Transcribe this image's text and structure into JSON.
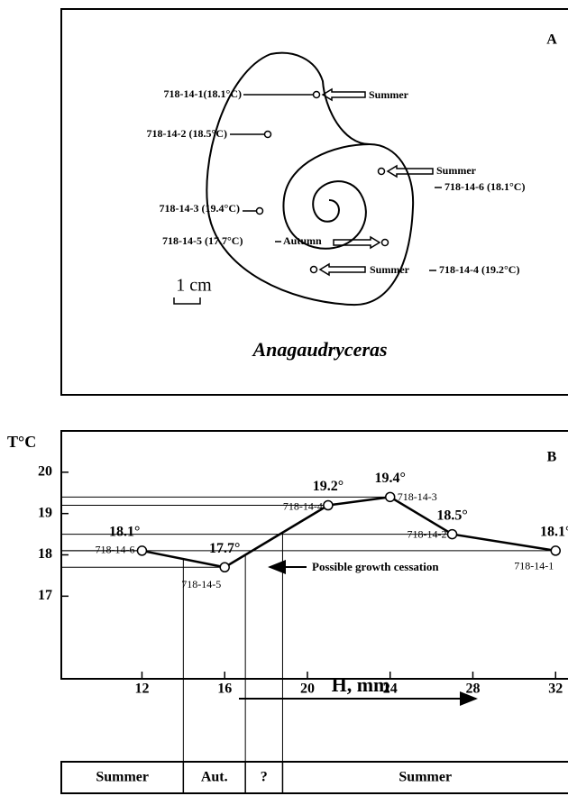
{
  "panel_a": {
    "label": "A",
    "taxon": "Anagaudryceras",
    "scale": "1 cm",
    "notes": [
      "718-14-1(18.1°C)",
      "Summer",
      "718-14-2 (18.5°C)",
      "Summer",
      "718-14-6 (18.1°C)",
      "718-14-3 (19.4°C)",
      "718-14-5 (17.7°C)",
      "Autumn",
      "Summer",
      "718-14-4 (19.2°C)"
    ]
  },
  "chart_data": {
    "type": "line",
    "panel_label": "B",
    "y_label": "T°C",
    "x_label": "H, mm",
    "annotation": "Possible growth cessation",
    "x": [
      12,
      16,
      21,
      24,
      27,
      32
    ],
    "series": [
      {
        "values": [
          18.1,
          17.7,
          19.2,
          19.4,
          18.5,
          18.1
        ],
        "value_labels": [
          "18.1°",
          "17.7°",
          "19.2°",
          "19.4°",
          "18.5°",
          "18.1°"
        ],
        "point_labels": [
          "718-14-6",
          "718-14-5",
          "718-14-4",
          "718-14-3",
          "718-14-2",
          "718-14-1"
        ],
        "color": "#000000"
      }
    ],
    "xlim": [
      8.1,
      32.6
    ],
    "ylim": [
      15,
      21
    ],
    "xticks": [
      12,
      16,
      20,
      24,
      28,
      32
    ],
    "yticks": [
      17,
      18,
      19,
      20
    ],
    "seasons": [
      "Summer",
      "Aut.",
      "?",
      "Summer"
    ],
    "season_bounds": [
      14,
      17,
      18.8
    ]
  }
}
